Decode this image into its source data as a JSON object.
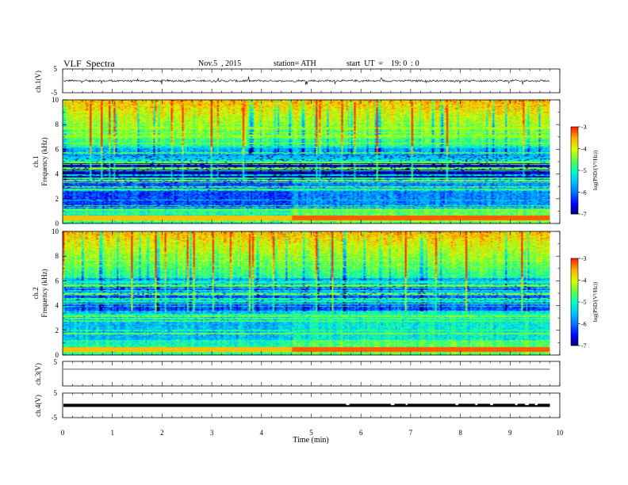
{
  "header": {
    "title": "VLF  Spectra",
    "date": "Nov.5  , 2015",
    "station": "station= ATH",
    "start": "start  UT  =    19: 0  : 0"
  },
  "chart_data": [
    {
      "type": "line",
      "ylabel": "ch.1(V)",
      "ylim": [
        -5,
        5
      ],
      "yticks": [
        "5",
        "-5"
      ],
      "baseline": 0,
      "noise_amplitude": 0.4,
      "spike_amplitude": 1.6
    },
    {
      "type": "heatmap",
      "ylabel_channel": "ch.1",
      "ylabel": "Frequency  (kHz)",
      "ylim": [
        0,
        10
      ],
      "yticks": [
        "0",
        "2",
        "4",
        "6",
        "8",
        "10"
      ],
      "colorbar": {
        "label": "log(PSD/(V²/Hz))",
        "range": [
          -7,
          -3
        ],
        "ticks": [
          "-3",
          "-4",
          "-5",
          "-6",
          "-7"
        ]
      },
      "change_time_min": 4.6
    },
    {
      "type": "heatmap",
      "ylabel_channel": "ch.2",
      "ylabel": "Frequency  (kHz)",
      "ylim": [
        0,
        10
      ],
      "yticks": [
        "0",
        "2",
        "4",
        "6",
        "8",
        "10"
      ],
      "colorbar": {
        "label": "log(PSD/(V²/Hz))",
        "range": [
          -7,
          -3
        ],
        "ticks": [
          "-3",
          "-4",
          "-5",
          "-6",
          "-7"
        ]
      },
      "change_time_min": 4.6
    },
    {
      "type": "line",
      "ylabel": "ch.3(V)",
      "ylim": [
        -5,
        5
      ],
      "yticks": [
        "5"
      ],
      "baseline": 1.8
    },
    {
      "type": "line",
      "ylabel": "ch.4(V)",
      "ylim": [
        -5,
        5
      ],
      "yticks": [
        "5",
        "-5"
      ],
      "baseline": 0,
      "gaps_min": [
        5.7,
        6.6,
        6.9,
        7.9,
        8.3,
        8.6,
        9.1,
        9.3,
        9.5
      ]
    }
  ],
  "x_axis": {
    "label": "Time  (min)",
    "ticks": [
      "0",
      "1",
      "2",
      "3",
      "4",
      "5",
      "6",
      "7",
      "8",
      "9",
      "10"
    ],
    "xlim": [
      0,
      10
    ],
    "data_end_min": 9.8
  },
  "colormap": [
    "#000070",
    "#0000ff",
    "#0070ff",
    "#00c0ff",
    "#00ffc0",
    "#60ff40",
    "#d8ff00",
    "#ffb000",
    "#ff2000",
    "#ffffff"
  ]
}
